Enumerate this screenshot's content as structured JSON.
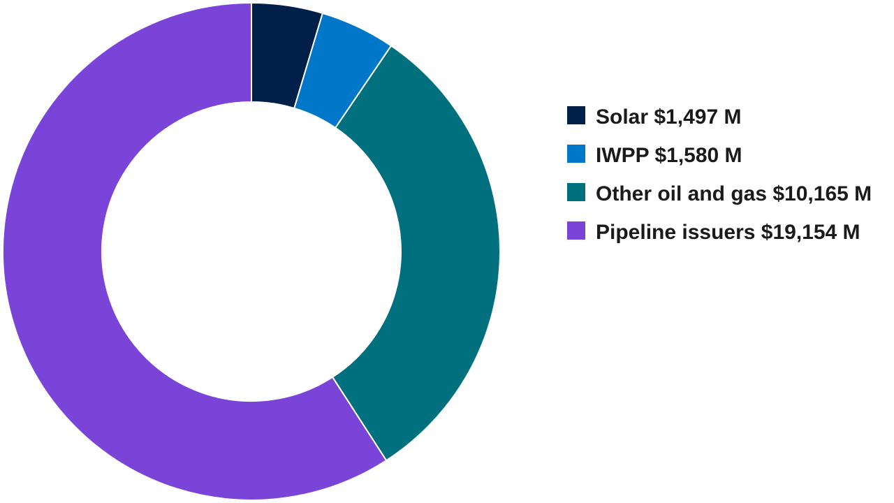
{
  "chart_data": {
    "type": "pie",
    "variant": "donut",
    "title": "",
    "categories": [
      "Solar",
      "IWPP",
      "Other oil and gas",
      "Pipeline issuers"
    ],
    "values": [
      1497,
      1580,
      10165,
      19154
    ],
    "unit": "$ M",
    "legend_labels": [
      "Solar $1,497 M",
      "IWPP $1,580 M",
      "Other oil and gas $10,165 M",
      "Pipeline issuers $19,154 M"
    ],
    "colors": [
      "#00204a",
      "#0077c8",
      "#00707f",
      "#7b44d9"
    ],
    "start_angle": "top (12 o'clock), clockwise",
    "legend_position": "right"
  }
}
